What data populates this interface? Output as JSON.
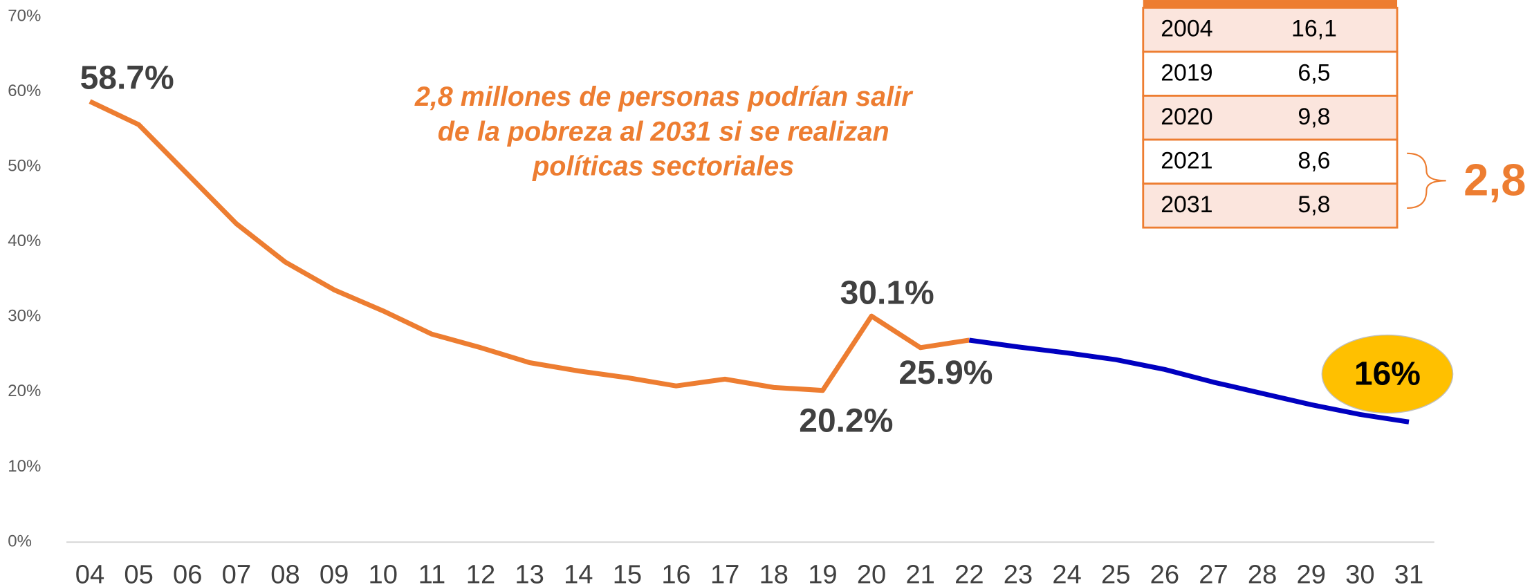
{
  "chart_data": {
    "type": "line",
    "categories": [
      "04",
      "05",
      "06",
      "07",
      "08",
      "09",
      "10",
      "11",
      "12",
      "13",
      "14",
      "15",
      "16",
      "17",
      "18",
      "19",
      "20",
      "21",
      "22",
      "23",
      "24",
      "25",
      "26",
      "27",
      "28",
      "29",
      "30",
      "31"
    ],
    "series": [
      {
        "color": "#ed7d31",
        "values": [
          58.7,
          55.6,
          49.0,
          42.4,
          37.3,
          33.6,
          30.8,
          27.7,
          25.9,
          23.9,
          22.8,
          21.9,
          20.8,
          21.7,
          20.6,
          20.2,
          30.1,
          25.9,
          26.9,
          null,
          null,
          null,
          null,
          null,
          null,
          null,
          null,
          null
        ],
        "value_labels": [
          "58.7%",
          null,
          null,
          null,
          null,
          null,
          null,
          null,
          null,
          null,
          null,
          null,
          null,
          null,
          null,
          "20.2%",
          "30.1%",
          "25.9%",
          null,
          null,
          null,
          null,
          null,
          null,
          null,
          null,
          null,
          null
        ]
      },
      {
        "color": "#0000c0",
        "values": [
          null,
          null,
          null,
          null,
          null,
          null,
          null,
          null,
          null,
          null,
          null,
          null,
          null,
          null,
          null,
          null,
          null,
          null,
          26.9,
          26.0,
          25.2,
          24.3,
          23.0,
          21.3,
          19.8,
          18.3,
          17.0,
          16.0
        ],
        "value_labels": [
          null,
          null,
          null,
          null,
          null,
          null,
          null,
          null,
          null,
          null,
          null,
          null,
          null,
          null,
          null,
          null,
          null,
          null,
          null,
          null,
          null,
          null,
          null,
          null,
          null,
          null,
          null,
          "16%"
        ]
      }
    ],
    "ylim": [
      0,
      70
    ],
    "yticks": [
      {
        "value": 0,
        "label": "0%"
      },
      {
        "value": 10,
        "label": "10%"
      },
      {
        "value": 20,
        "label": "20%"
      },
      {
        "value": 30,
        "label": "30%"
      },
      {
        "value": 40,
        "label": "40%"
      },
      {
        "value": 50,
        "label": "50%"
      },
      {
        "value": 60,
        "label": "60%"
      },
      {
        "value": 70,
        "label": "70%"
      }
    ],
    "annotation": [
      "2,8 millones de personas podrían salir",
      "de la pobreza al 2031 si se realizan",
      "políticas sectoriales"
    ]
  },
  "table": {
    "rows": [
      [
        "2004",
        "16,1"
      ],
      [
        "2019",
        "6,5"
      ],
      [
        "2020",
        "9,8"
      ],
      [
        "2021",
        "8,6"
      ],
      [
        "2031",
        "5,8"
      ]
    ],
    "brace_label": "2,8"
  }
}
